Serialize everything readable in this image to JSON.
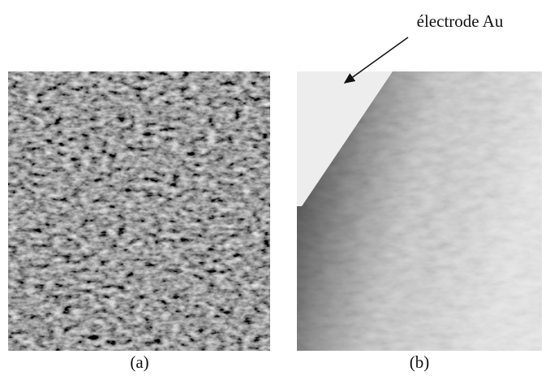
{
  "annotation": "électrode Au",
  "panels": [
    {
      "label": "(a)"
    },
    {
      "label": "(b)"
    }
  ]
}
